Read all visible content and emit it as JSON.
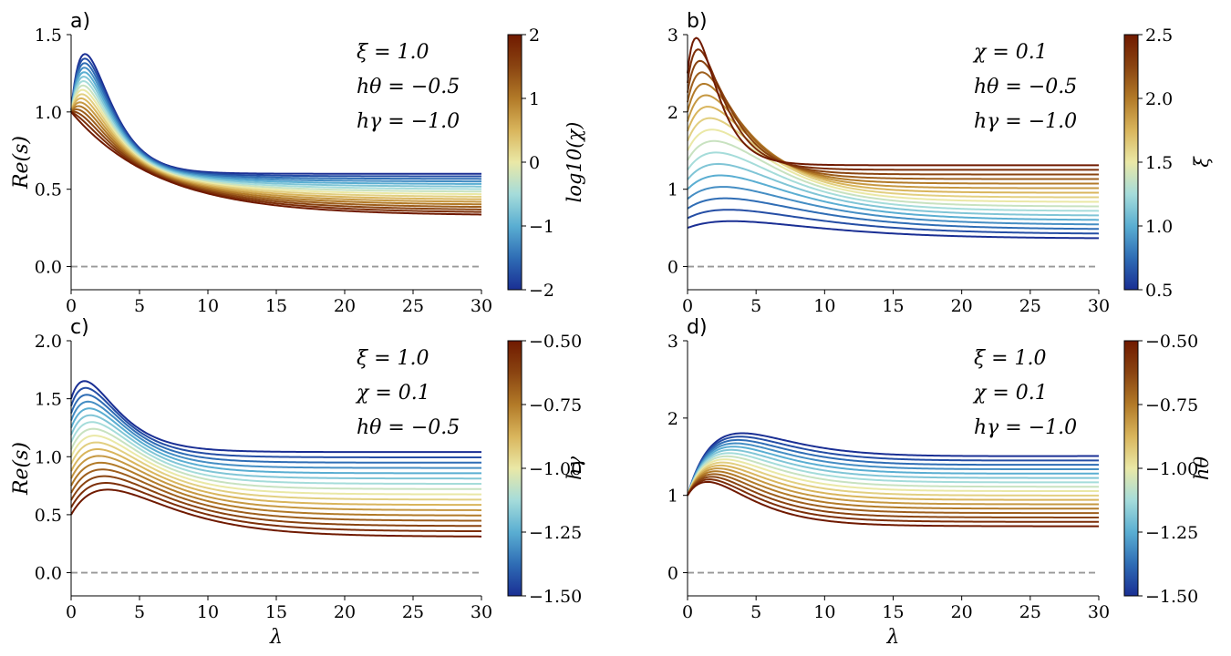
{
  "chart_data": [
    {
      "panel_label": "a)",
      "type": "line",
      "xlabel": "λ",
      "ylabel": "Re(s)",
      "xlim": [
        0,
        30
      ],
      "ylim": [
        -0.15,
        1.5
      ],
      "xticks": [
        "0",
        "5",
        "10",
        "15",
        "20",
        "25",
        "30"
      ],
      "yticks": [
        "0.0",
        "0.5",
        "1.0",
        "1.5"
      ],
      "reference_line": {
        "y": 0.0,
        "style": "dashed"
      },
      "annotations": [
        "ξ = 1.0",
        "hθ = −0.5",
        "hγ = −1.0"
      ],
      "colorbar": {
        "label": "log10(χ)",
        "range": [
          -2,
          2
        ],
        "ticks": [
          "−2",
          "−1",
          "0",
          "1",
          "2"
        ]
      },
      "series_count": 17,
      "family": {
        "first_curve": {
          "color_value": -2,
          "start": 1.0,
          "peak": 1.36,
          "peak_at": 1.3,
          "end": 0.6
        },
        "last_curve": {
          "color_value": 2,
          "start": 1.0,
          "end": 0.33,
          "monotonic_decay": true
        }
      }
    },
    {
      "panel_label": "b)",
      "type": "line",
      "xlabel": "λ",
      "ylabel": "",
      "xlim": [
        0,
        30
      ],
      "ylim": [
        -0.3,
        3
      ],
      "xticks": [
        "0",
        "5",
        "10",
        "15",
        "20",
        "25",
        "30"
      ],
      "yticks": [
        "0",
        "1",
        "2",
        "3"
      ],
      "reference_line": {
        "y": 0.0,
        "style": "dashed"
      },
      "annotations": [
        "χ = 0.1",
        "hθ = −0.5",
        "hγ = −1.0"
      ],
      "colorbar": {
        "label": "ξ",
        "range": [
          0.5,
          2.5
        ],
        "ticks": [
          "0.5",
          "1.0",
          "1.5",
          "2.0",
          "2.5"
        ]
      },
      "series_count": 17,
      "family": {
        "first_curve": {
          "color_value": 0.5,
          "start": 0.5,
          "peak": 0.58,
          "peak_at": 4.5,
          "end": 0.36
        },
        "last_curve": {
          "color_value": 2.5,
          "start": 2.5,
          "peak": 2.88,
          "peak_at": 1.0,
          "end": 1.31
        }
      }
    },
    {
      "panel_label": "c)",
      "type": "line",
      "xlabel": "λ",
      "ylabel": "Re(s)",
      "xlim": [
        0,
        30
      ],
      "ylim": [
        -0.2,
        2.0
      ],
      "xticks": [
        "0",
        "5",
        "10",
        "15",
        "20",
        "25",
        "30"
      ],
      "yticks": [
        "0.0",
        "0.5",
        "1.0",
        "1.5",
        "2.0"
      ],
      "reference_line": {
        "y": 0.0,
        "style": "dashed"
      },
      "annotations": [
        "ξ = 1.0",
        "χ = 0.1",
        "hθ = −0.5"
      ],
      "colorbar": {
        "label": "hγ",
        "range": [
          -1.5,
          -0.5
        ],
        "ticks": [
          "−1.50",
          "−1.25",
          "−1.00",
          "−0.75",
          "−0.50"
        ]
      },
      "series_count": 17,
      "family": {
        "first_curve": {
          "color_value": -1.5,
          "start": 1.5,
          "peak": 1.62,
          "peak_at": 1.6,
          "end": 1.04
        },
        "last_curve": {
          "color_value": -0.5,
          "start": 0.5,
          "peak": 0.71,
          "peak_at": 3.3,
          "end": 0.31
        }
      }
    },
    {
      "panel_label": "d)",
      "type": "line",
      "xlabel": "λ",
      "ylabel": "",
      "xlim": [
        0,
        30
      ],
      "ylim": [
        -0.3,
        3
      ],
      "xticks": [
        "0",
        "5",
        "10",
        "15",
        "20",
        "25",
        "30"
      ],
      "yticks": [
        "0",
        "1",
        "2",
        "3"
      ],
      "reference_line": {
        "y": 0.0,
        "style": "dashed"
      },
      "annotations": [
        "ξ = 1.0",
        "χ = 0.1",
        "hγ = −1.0"
      ],
      "colorbar": {
        "label": "hθ",
        "range": [
          -1.5,
          -0.5
        ],
        "ticks": [
          "−1.50",
          "−1.25",
          "−1.00",
          "−0.75",
          "−0.50"
        ]
      },
      "series_count": 17,
      "family": {
        "first_curve": {
          "color_value": -1.5,
          "start": 1.0,
          "peak": 1.78,
          "peak_at": 3.0,
          "end": 1.51
        },
        "last_curve": {
          "color_value": -0.5,
          "start": 1.0,
          "peak": 1.15,
          "peak_at": 2.2,
          "end": 0.6
        }
      }
    }
  ],
  "colormap": [
    "#1a2f94",
    "#2f6db5",
    "#5aaed2",
    "#a5dcda",
    "#eae8a6",
    "#d9b55c",
    "#b27a28",
    "#8a4411",
    "#701a00"
  ],
  "reference_line_color": "#999999"
}
